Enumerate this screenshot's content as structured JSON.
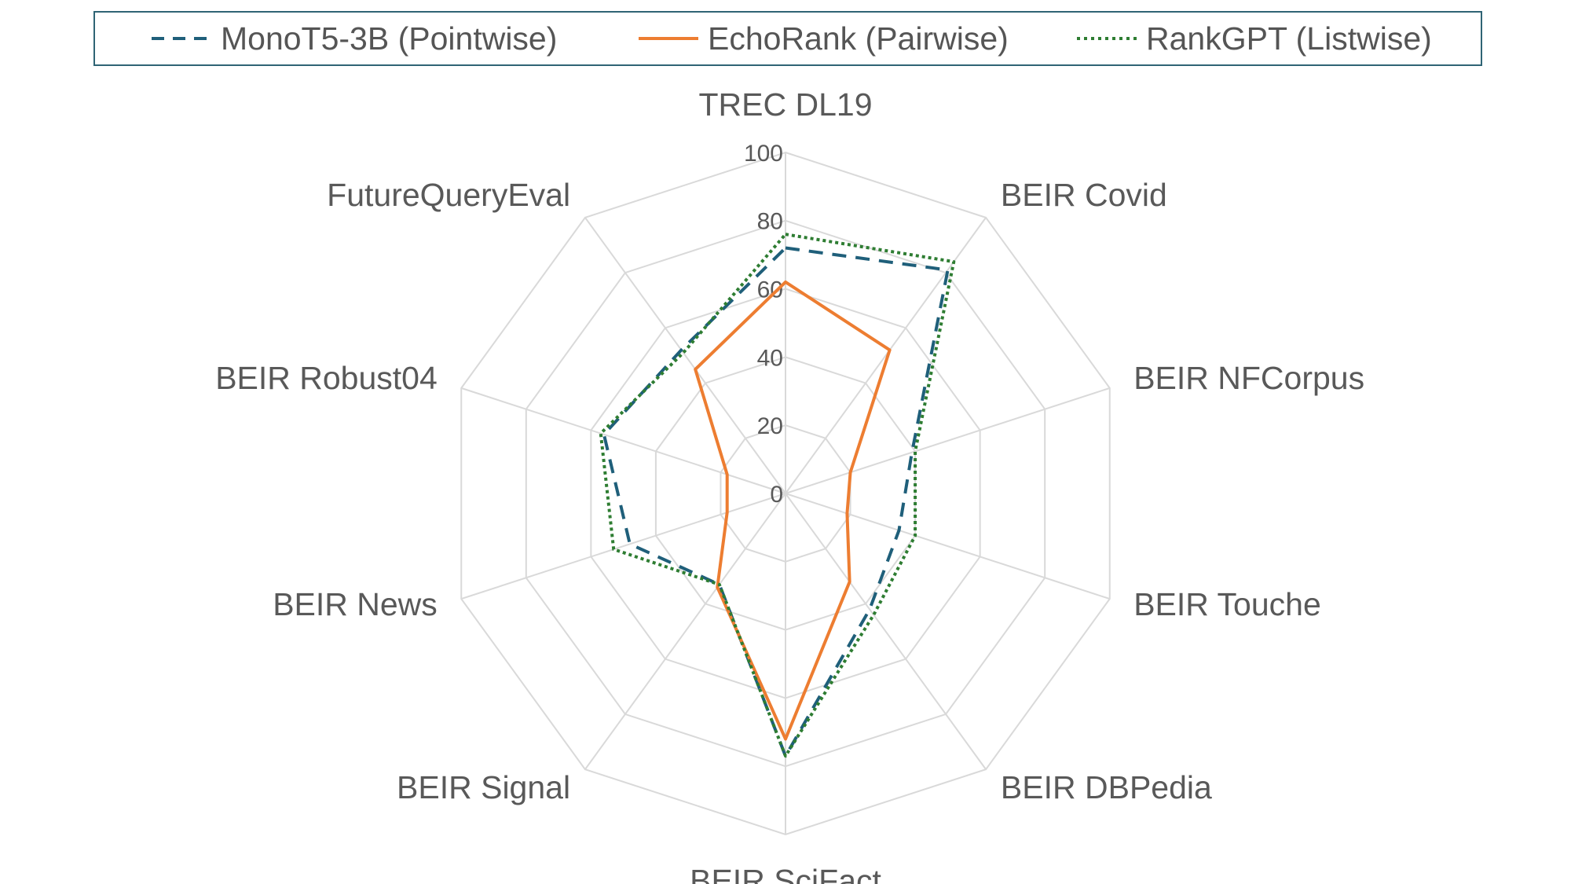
{
  "chart_data": {
    "type": "radar",
    "categories": [
      "TREC DL19",
      "BEIR Covid",
      "BEIR NFCorpus",
      "BEIR Touche",
      "BEIR DBPedia",
      "BEIR SciFact",
      "BEIR Signal",
      "BEIR News",
      "BEIR Robust04",
      "FutureQueryEval"
    ],
    "rlim": [
      0,
      100
    ],
    "r_ticks": [
      0,
      20,
      40,
      60,
      80,
      100
    ],
    "grid": true,
    "legend_position": "top",
    "series": [
      {
        "name": "MonoT5-3B (Pointwise)",
        "style": "dashed",
        "color": "#1f5f7a",
        "values": [
          72,
          81,
          39,
          35,
          42,
          77,
          33,
          48,
          56,
          52
        ]
      },
      {
        "name": "EchoRank (Pairwise)",
        "style": "solid",
        "color": "#ed7d31",
        "values": [
          62,
          52,
          20,
          19,
          32,
          72,
          34,
          18,
          18,
          45
        ]
      },
      {
        "name": "RankGPT (Listwise)",
        "style": "dotted",
        "color": "#2e7d32",
        "values": [
          76,
          84,
          40,
          40,
          44,
          77,
          33,
          53,
          57,
          51
        ]
      }
    ]
  }
}
